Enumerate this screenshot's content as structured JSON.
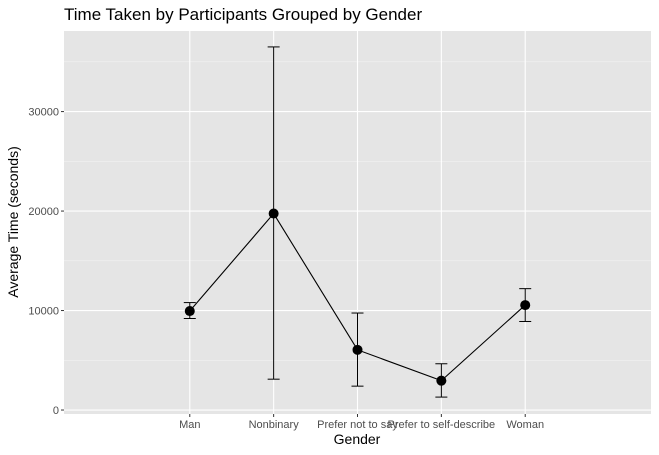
{
  "chart_data": {
    "type": "line",
    "title": "Time Taken by Participants Grouped by Gender",
    "xlabel": "Gender",
    "ylabel": "Average Time (seconds)",
    "categories": [
      "Man",
      "Nonbinary",
      "Prefer not to say",
      "Prefer to self-describe",
      "Woman"
    ],
    "values": [
      9950,
      19750,
      6050,
      2950,
      10550
    ],
    "error_lower": [
      9200,
      3100,
      2400,
      1300,
      8900
    ],
    "error_upper": [
      10800,
      36500,
      9750,
      4650,
      12200
    ],
    "ylim": [
      -400,
      38100
    ],
    "yticks": [
      0,
      10000,
      20000,
      30000
    ],
    "ytick_labels": [
      "0",
      "10000",
      "20000",
      "30000"
    ],
    "grid": true,
    "legend": "none",
    "colors": {
      "panel_bg": "#e5e5e5",
      "grid_major": "#ffffff",
      "grid_minor": "#f2f2f2",
      "series": "#000000",
      "tick": "#333333"
    }
  }
}
